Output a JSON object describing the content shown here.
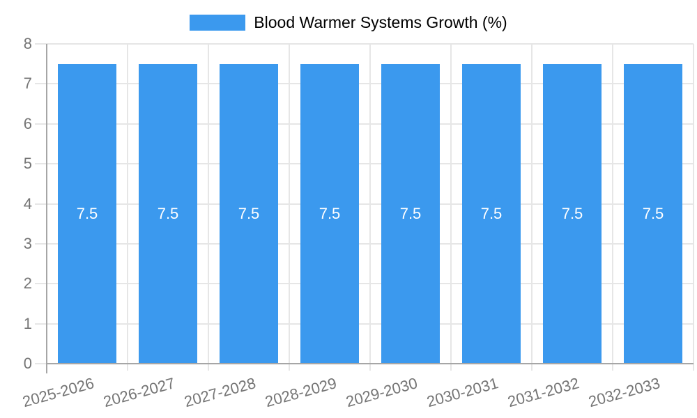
{
  "legend": {
    "label": "Blood Warmer Systems Growth (%)"
  },
  "chart_data": {
    "type": "bar",
    "title": "Blood Warmer Systems Growth (%)",
    "categories": [
      "2025-2026",
      "2026-2027",
      "2027-2028",
      "2028-2029",
      "2029-2030",
      "2030-2031",
      "2031-2032",
      "2032-2033"
    ],
    "values": [
      7.5,
      7.5,
      7.5,
      7.5,
      7.5,
      7.5,
      7.5,
      7.5
    ],
    "bar_labels": [
      "7.5",
      "7.5",
      "7.5",
      "7.5",
      "7.5",
      "7.5",
      "7.5",
      "7.5"
    ],
    "xlabel": "",
    "ylabel": "",
    "ylim": [
      0,
      8
    ],
    "yticks": [
      0,
      1,
      2,
      3,
      4,
      5,
      6,
      7,
      8
    ],
    "grid": true,
    "legend_position": "top",
    "x_tick_rotation_deg": -15.5,
    "colors": {
      "bar": "#3B99EE",
      "bar_label": "#FFFFFF",
      "axis": "#A6A6A6",
      "grid": "#E6E6E6",
      "text": "#757575",
      "background": "#FFFFFF"
    }
  }
}
